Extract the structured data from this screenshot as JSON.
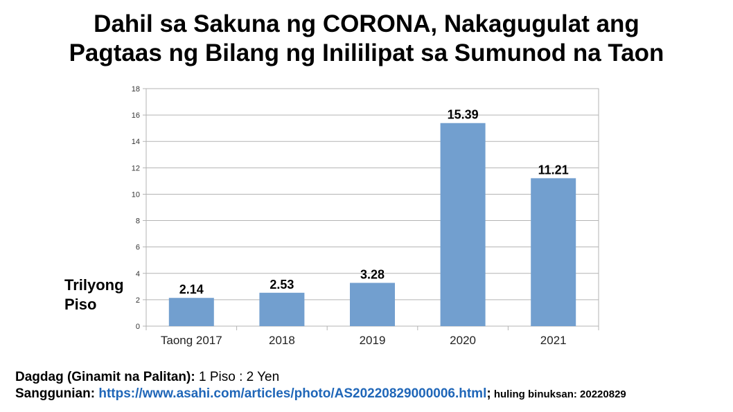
{
  "title": {
    "line1": "Dahil sa Sakuna ng CORONA, Nakagugulat ang",
    "line2": "Pagtaas ng Bilang ng Inililipat sa Sumunod na Taon"
  },
  "chart_data": {
    "type": "bar",
    "categories": [
      "Taong 2017",
      "2018",
      "2019",
      "2020",
      "2021"
    ],
    "values": [
      2.14,
      2.53,
      3.28,
      15.39,
      11.21
    ],
    "value_labels": [
      "2.14",
      "2.53",
      "3.28",
      "15.39",
      "11.21"
    ],
    "ylabel": "Trilyong Piso",
    "ylabel_lines": [
      "Trilyong",
      "Piso"
    ],
    "ylim": [
      0,
      18
    ],
    "yticks": [
      0,
      2,
      4,
      6,
      8,
      10,
      12,
      14,
      16,
      18
    ],
    "grid": true,
    "bar_color": "#729fcf"
  },
  "footer": {
    "note_label": "Dagdag (Ginamit na Palitan):",
    "note_value": " 1 Piso : 2 Yen",
    "source_label": "Sanggunian:",
    "source_url": "https://www.asahi.com/articles/photo/AS20220829000006.html",
    "source_sep": ";",
    "accessed": " huling binuksan: 20220829"
  }
}
